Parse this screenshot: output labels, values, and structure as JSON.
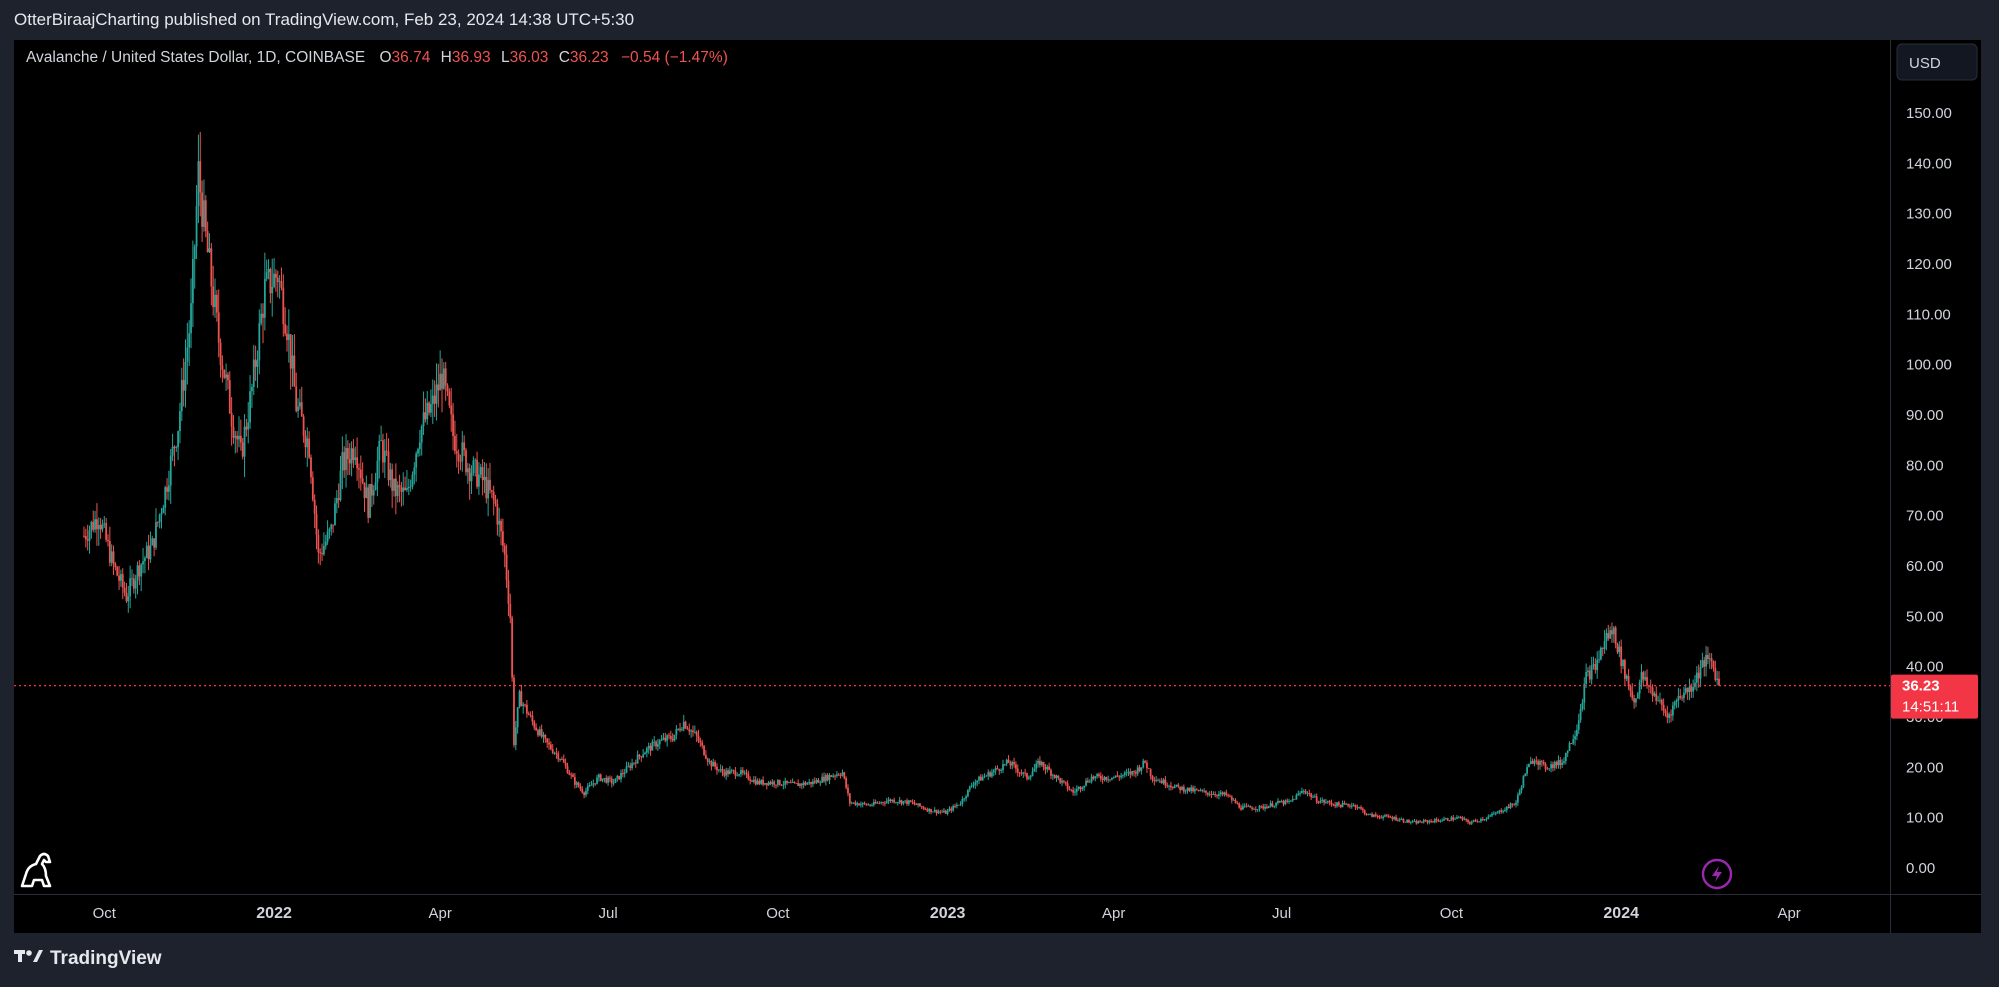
{
  "header": {
    "publisher_line": "OtterBiraajCharting published on TradingView.com, Feb 23, 2024 14:38 UTC+5:30"
  },
  "legend": {
    "symbol": "Avalanche / United States Dollar, 1D, COINBASE",
    "open_label": "O",
    "open_value": "36.74",
    "high_label": "H",
    "high_value": "36.93",
    "low_label": "L",
    "low_value": "36.03",
    "close_label": "C",
    "close_value": "36.23",
    "change": "−0.54 (−1.47%)"
  },
  "currency_button": "USD",
  "price_badge": {
    "price": "36.23",
    "countdown": "14:51:11"
  },
  "footer": {
    "brand": "TradingView"
  },
  "colors": {
    "up": "#26a69a",
    "down": "#ef5350",
    "price_line": "#f23645",
    "lightning": "#9c27b0"
  },
  "chart_data": {
    "type": "candlestick",
    "title": "Avalanche / United States Dollar, 1D, COINBASE",
    "y_ticks": [
      "0.00",
      "10.00",
      "20.00",
      "30.00",
      "40.00",
      "50.00",
      "60.00",
      "70.00",
      "80.00",
      "90.00",
      "100.00",
      "110.00",
      "120.00",
      "130.00",
      "140.00",
      "150.00"
    ],
    "ylim": [
      0,
      150
    ],
    "x_ticks": [
      {
        "label": "Oct",
        "date": "2021-10-01",
        "bold": false
      },
      {
        "label": "2022",
        "date": "2022-01-01",
        "bold": true
      },
      {
        "label": "Apr",
        "date": "2022-04-01",
        "bold": false
      },
      {
        "label": "Jul",
        "date": "2022-07-01",
        "bold": false
      },
      {
        "label": "Oct",
        "date": "2022-10-01",
        "bold": false
      },
      {
        "label": "2023",
        "date": "2023-01-01",
        "bold": true
      },
      {
        "label": "Apr",
        "date": "2023-04-01",
        "bold": false
      },
      {
        "label": "Jul",
        "date": "2023-07-01",
        "bold": false
      },
      {
        "label": "Oct",
        "date": "2023-10-01",
        "bold": false
      },
      {
        "label": "2024",
        "date": "2024-01-01",
        "bold": true
      },
      {
        "label": "Apr",
        "date": "2024-04-01",
        "bold": false
      }
    ],
    "date_range": [
      "2021-09-20",
      "2024-02-23"
    ],
    "last_price": 36.23,
    "closes": [
      [
        "2021-09-20",
        66
      ],
      [
        "2021-09-28",
        70
      ],
      [
        "2021-10-06",
        60
      ],
      [
        "2021-10-13",
        54
      ],
      [
        "2021-10-20",
        60
      ],
      [
        "2021-10-27",
        64
      ],
      [
        "2021-11-03",
        75
      ],
      [
        "2021-11-10",
        88
      ],
      [
        "2021-11-17",
        110
      ],
      [
        "2021-11-21",
        138
      ],
      [
        "2021-11-25",
        125
      ],
      [
        "2021-12-02",
        105
      ],
      [
        "2021-12-09",
        90
      ],
      [
        "2021-12-14",
        82
      ],
      [
        "2021-12-20",
        95
      ],
      [
        "2021-12-27",
        115
      ],
      [
        "2022-01-03",
        118
      ],
      [
        "2022-01-08",
        108
      ],
      [
        "2022-01-13",
        92
      ],
      [
        "2022-01-20",
        84
      ],
      [
        "2022-01-25",
        62
      ],
      [
        "2022-02-01",
        67
      ],
      [
        "2022-02-07",
        80
      ],
      [
        "2022-02-14",
        84
      ],
      [
        "2022-02-21",
        72
      ],
      [
        "2022-02-28",
        84
      ],
      [
        "2022-03-07",
        75
      ],
      [
        "2022-03-14",
        74
      ],
      [
        "2022-03-21",
        87
      ],
      [
        "2022-03-28",
        92
      ],
      [
        "2022-04-02",
        98
      ],
      [
        "2022-04-08",
        86
      ],
      [
        "2022-04-16",
        80
      ],
      [
        "2022-04-24",
        77
      ],
      [
        "2022-05-01",
        72
      ],
      [
        "2022-05-06",
        62
      ],
      [
        "2022-05-09",
        50
      ],
      [
        "2022-05-11",
        25
      ],
      [
        "2022-05-14",
        34
      ],
      [
        "2022-05-21",
        29
      ],
      [
        "2022-05-28",
        25
      ],
      [
        "2022-06-05",
        22
      ],
      [
        "2022-06-13",
        17
      ],
      [
        "2022-06-18",
        15
      ],
      [
        "2022-06-26",
        18
      ],
      [
        "2022-07-04",
        17
      ],
      [
        "2022-07-12",
        20
      ],
      [
        "2022-07-20",
        23
      ],
      [
        "2022-07-28",
        25
      ],
      [
        "2022-08-05",
        26
      ],
      [
        "2022-08-11",
        29
      ],
      [
        "2022-08-18",
        26
      ],
      [
        "2022-08-25",
        21
      ],
      [
        "2022-09-01",
        19
      ],
      [
        "2022-09-10",
        19
      ],
      [
        "2022-09-20",
        17
      ],
      [
        "2022-09-30",
        17
      ],
      [
        "2022-10-10",
        16.5
      ],
      [
        "2022-10-20",
        17
      ],
      [
        "2022-10-31",
        18.5
      ],
      [
        "2022-11-05",
        19
      ],
      [
        "2022-11-09",
        13
      ],
      [
        "2022-11-20",
        12.5
      ],
      [
        "2022-12-01",
        13.5
      ],
      [
        "2022-12-12",
        13
      ],
      [
        "2022-12-22",
        11.5
      ],
      [
        "2022-12-31",
        11
      ],
      [
        "2023-01-08",
        13
      ],
      [
        "2023-01-15",
        17
      ],
      [
        "2023-01-25",
        19
      ],
      [
        "2023-02-03",
        21
      ],
      [
        "2023-02-13",
        18
      ],
      [
        "2023-02-20",
        21
      ],
      [
        "2023-03-01",
        18
      ],
      [
        "2023-03-10",
        15
      ],
      [
        "2023-03-20",
        18
      ],
      [
        "2023-04-01",
        18
      ],
      [
        "2023-04-12",
        19
      ],
      [
        "2023-04-18",
        21
      ],
      [
        "2023-04-22",
        18
      ],
      [
        "2023-05-05",
        16
      ],
      [
        "2023-05-20",
        15
      ],
      [
        "2023-06-01",
        14.5
      ],
      [
        "2023-06-09",
        12
      ],
      [
        "2023-06-20",
        12
      ],
      [
        "2023-06-30",
        13
      ],
      [
        "2023-07-05",
        13
      ],
      [
        "2023-07-13",
        15.5
      ],
      [
        "2023-07-20",
        13.5
      ],
      [
        "2023-08-01",
        12.5
      ],
      [
        "2023-08-10",
        12.5
      ],
      [
        "2023-08-17",
        10.5
      ],
      [
        "2023-08-30",
        10
      ],
      [
        "2023-09-10",
        9
      ],
      [
        "2023-09-25",
        9.5
      ],
      [
        "2023-10-05",
        10
      ],
      [
        "2023-10-11",
        9
      ],
      [
        "2023-10-20",
        10
      ],
      [
        "2023-10-26",
        11
      ],
      [
        "2023-11-05",
        13
      ],
      [
        "2023-11-10",
        19
      ],
      [
        "2023-11-15",
        22
      ],
      [
        "2023-11-20",
        20
      ],
      [
        "2023-11-30",
        21
      ],
      [
        "2023-12-08",
        28
      ],
      [
        "2023-12-13",
        38
      ],
      [
        "2023-12-18",
        40
      ],
      [
        "2023-12-24",
        46
      ],
      [
        "2023-12-28",
        47
      ],
      [
        "2024-01-02",
        40
      ],
      [
        "2024-01-08",
        33
      ],
      [
        "2024-01-12",
        38
      ],
      [
        "2024-01-20",
        34
      ],
      [
        "2024-01-26",
        30
      ],
      [
        "2024-02-01",
        34
      ],
      [
        "2024-02-08",
        36
      ],
      [
        "2024-02-15",
        41
      ],
      [
        "2024-02-19",
        41
      ],
      [
        "2024-02-23",
        36.23
      ]
    ]
  }
}
